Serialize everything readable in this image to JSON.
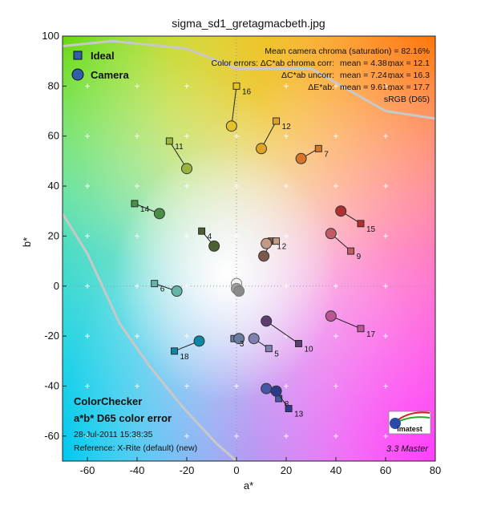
{
  "chart_data": {
    "type": "scatter",
    "title": "sigma_sd1_gretagmacbeth.jpg",
    "xlabel": "a*",
    "ylabel": "b*",
    "xlim": [
      -70,
      80
    ],
    "ylim": [
      -70,
      100
    ],
    "xticks": [
      -60,
      -40,
      -20,
      0,
      20,
      40,
      60,
      80
    ],
    "yticks": [
      -60,
      -40,
      -20,
      0,
      20,
      40,
      60,
      80,
      100
    ],
    "grid": true,
    "legend_position": "top-left",
    "series": [
      {
        "name": "Ideal",
        "marker": "square"
      },
      {
        "name": "Camera",
        "marker": "circle"
      }
    ],
    "patches": [
      {
        "id": "1",
        "ideal": [
          14,
          18
        ],
        "camera": [
          11,
          12
        ],
        "color": "#7a5a4a"
      },
      {
        "id": "2",
        "ideal": [
          16,
          18
        ],
        "camera": [
          12,
          17
        ],
        "color": "#c49a86"
      },
      {
        "id": "3",
        "ideal": [
          -1,
          -21
        ],
        "camera": [
          1,
          -21
        ],
        "color": "#6a7da0"
      },
      {
        "id": "4",
        "ideal": [
          -14,
          22
        ],
        "camera": [
          -9,
          16
        ],
        "color": "#4f5f34"
      },
      {
        "id": "5",
        "ideal": [
          13,
          -25
        ],
        "camera": [
          7,
          -21
        ],
        "color": "#7f80b0"
      },
      {
        "id": "6",
        "ideal": [
          -33,
          1
        ],
        "camera": [
          -24,
          -2
        ],
        "color": "#63b5a8"
      },
      {
        "id": "7",
        "ideal": [
          33,
          55
        ],
        "camera": [
          26,
          51
        ],
        "color": "#d9742b"
      },
      {
        "id": "8",
        "ideal": [
          17,
          -45
        ],
        "camera": [
          12,
          -41
        ],
        "color": "#4556a4"
      },
      {
        "id": "9",
        "ideal": [
          46,
          14
        ],
        "camera": [
          38,
          21
        ],
        "color": "#c45a62"
      },
      {
        "id": "10",
        "ideal": [
          25,
          -23
        ],
        "camera": [
          12,
          -14
        ],
        "color": "#5b3d6f"
      },
      {
        "id": "11",
        "ideal": [
          -27,
          58
        ],
        "camera": [
          -20,
          47
        ],
        "color": "#9bb43c"
      },
      {
        "id": "12",
        "ideal": [
          16,
          66
        ],
        "camera": [
          10,
          55
        ],
        "color": "#e0a329"
      },
      {
        "id": "13",
        "ideal": [
          21,
          -49
        ],
        "camera": [
          16,
          -42
        ],
        "color": "#2c3a8c"
      },
      {
        "id": "14",
        "ideal": [
          -41,
          33
        ],
        "camera": [
          -31,
          29
        ],
        "color": "#4a8f45"
      },
      {
        "id": "15",
        "ideal": [
          50,
          25
        ],
        "camera": [
          42,
          30
        ],
        "color": "#b03030"
      },
      {
        "id": "16",
        "ideal": [
          0,
          80
        ],
        "camera": [
          -2,
          64
        ],
        "color": "#e5c12a"
      },
      {
        "id": "17",
        "ideal": [
          50,
          -17
        ],
        "camera": [
          38,
          -12
        ],
        "color": "#bb5594"
      },
      {
        "id": "18",
        "ideal": [
          -25,
          -26
        ],
        "camera": [
          -15,
          -22
        ],
        "color": "#0d87a8"
      }
    ],
    "neutral_points": [
      {
        "camera": [
          0,
          1
        ],
        "color": "#f2f2f2"
      },
      {
        "camera": [
          0,
          -1
        ],
        "color": "#a0a0a0"
      },
      {
        "camera": [
          1,
          -2
        ],
        "color": "#8a8a8a"
      }
    ],
    "stats": {
      "line1": "Mean camera chroma (saturation) = 82.16%",
      "line2_label": "Color errors:  ΔC*ab chroma corr:",
      "line2_mean": "mean = 4.38 ;",
      "line2_max": "max = 12.1",
      "line3_label": "ΔC*ab uncorr:",
      "line3_mean": "mean = 7.24 ;",
      "line3_max": "max = 16.3",
      "line4_label": "ΔE*ab:",
      "line4_mean": "mean = 9.61 ;",
      "line4_max": "max = 17.7",
      "line5": "sRGB (D65)"
    },
    "footer": {
      "heading1": "ColorChecker",
      "heading2": "a*b* D65 color error",
      "date": "28-Jul-2011 15:38:35",
      "reference": "Reference: X-Rite (default) (new)"
    },
    "logo": {
      "text": "imatest",
      "version": "3.3  Master"
    },
    "gamut_curve": [
      [
        -70,
        96
      ],
      [
        -50,
        98
      ],
      [
        -20,
        95
      ],
      [
        0,
        87
      ],
      [
        30,
        87
      ],
      [
        60,
        70
      ],
      [
        80,
        67
      ]
    ],
    "locus_curve": [
      [
        -70,
        29
      ],
      [
        -60,
        13
      ],
      [
        -47,
        -15
      ],
      [
        -35,
        -32
      ],
      [
        -22,
        -48
      ],
      [
        -8,
        -63
      ],
      [
        0,
        -70
      ]
    ]
  }
}
